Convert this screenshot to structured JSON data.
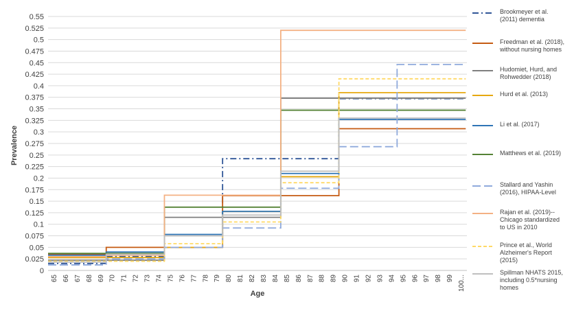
{
  "chart_data": {
    "type": "line",
    "xlabel": "Age",
    "ylabel": "Prevalence",
    "ylim": [
      0,
      0.55
    ],
    "y_tick_labels": [
      "0",
      "0.025",
      "0.05",
      "0.075",
      "0.1",
      "0.125",
      "0.15",
      "0.175",
      "0.2",
      "0.225",
      "0.25",
      "0.275",
      "0.3",
      "0.325",
      "0.35",
      "0.375",
      "0.4",
      "0.425",
      "0.45",
      "0.475",
      "0.5",
      "0.525",
      "0.55"
    ],
    "x_tick_labels": [
      "65",
      "66",
      "67",
      "68",
      "69",
      "70",
      "71",
      "72",
      "73",
      "74",
      "75",
      "76",
      "77",
      "78",
      "79",
      "80",
      "81",
      "82",
      "83",
      "84",
      "85",
      "86",
      "87",
      "88",
      "89",
      "90",
      "91",
      "92",
      "93",
      "94",
      "95",
      "96",
      "97",
      "98",
      "99",
      "100..."
    ],
    "grid": true,
    "legend_position": "right",
    "series": [
      {
        "name": "Brookmeyer et al. (2011) dementia",
        "color": "#2f5597",
        "dash": "dashdot",
        "breaks": [
          65,
          70,
          75,
          80,
          85,
          90
        ],
        "values": [
          0.015,
          0.03,
          0.05,
          0.242,
          0.242,
          0.372
        ]
      },
      {
        "name": "Freedman et al. (2018), without nursing homes",
        "color": "#c55a11",
        "dash": "solid",
        "breaks": [
          65,
          70,
          75,
          80,
          85,
          90
        ],
        "values": [
          0.035,
          0.05,
          0.05,
          0.162,
          0.162,
          0.307
        ]
      },
      {
        "name": "Hudomiet, Hurd, and Rohwedder (2018)",
        "color": "#7f7f7f",
        "dash": "solid",
        "breaks": [
          65,
          70,
          75,
          80,
          85,
          90
        ],
        "values": [
          0.022,
          0.022,
          0.115,
          0.115,
          0.373,
          0.373
        ]
      },
      {
        "name": "Hurd et al. (2013)",
        "color": "#e6a80f",
        "dash": "solid",
        "breaks": [
          65,
          70,
          75,
          80,
          85,
          90
        ],
        "values": [
          0.028,
          0.028,
          0.05,
          0.128,
          0.203,
          0.385
        ]
      },
      {
        "name": "Li et al. (2017)",
        "color": "#2e75b6",
        "dash": "solid",
        "breaks": [
          65,
          70,
          75,
          80,
          85,
          90
        ],
        "values": [
          0.033,
          0.04,
          0.078,
          0.128,
          0.21,
          0.327
        ]
      },
      {
        "name": "Matthews et al. (2019)",
        "color": "#548235",
        "dash": "solid",
        "breaks": [
          65,
          70,
          75,
          80,
          85,
          90
        ],
        "values": [
          0.037,
          0.037,
          0.137,
          0.137,
          0.347,
          0.347
        ]
      },
      {
        "name": "Stallard and Yashin (2016), HIPAA-Level",
        "color": "#8faadc",
        "dash": "longdash",
        "breaks": [
          65,
          70,
          75,
          80,
          85,
          90,
          95
        ],
        "values": [
          0.012,
          0.025,
          0.05,
          0.092,
          0.178,
          0.268,
          0.446
        ]
      },
      {
        "name": "Rajan et al. (2019)--Chicago standardized to US in 2010",
        "color": "#f4b183",
        "dash": "solid",
        "breaks": [
          65,
          70,
          75,
          80,
          85,
          90
        ],
        "values": [
          0.03,
          0.033,
          0.163,
          0.163,
          0.52,
          0.52
        ]
      },
      {
        "name": "Prince et al., World Alzheimer's Report (2015)",
        "color": "#ffd966",
        "dash": "shortdash",
        "breaks": [
          65,
          70,
          75,
          80,
          85,
          90
        ],
        "values": [
          0.02,
          0.02,
          0.058,
          0.105,
          0.19,
          0.415
        ]
      },
      {
        "name": "Spillman NHATS 2015, including 0.5*nursing homes",
        "color": "#bfbfbf",
        "dash": "solid",
        "breaks": [
          65,
          70,
          75,
          80,
          85,
          90
        ],
        "values": [
          0.018,
          0.035,
          0.075,
          0.12,
          0.215,
          0.33
        ]
      }
    ]
  },
  "legend": {
    "labels": [
      "Brookmeyer et al.\n(2011) dementia",
      "Freedman et al. (2018),\nwithout nursing homes",
      "Hudomiet, Hurd, and\nRohwedder (2018)",
      "Hurd et al. (2013)",
      "Li et al. (2017)",
      "Matthews et al. (2019)",
      "Stallard and Yashin\n(2016), HIPAA-Level",
      "Rajan et al. (2019)--\nChicago standardized\nto US in 2010",
      "Prince et al., World\nAlzheimer's Report\n(2015)",
      "Spillman NHATS 2015,\nincluding 0.5*nursing\nhomes"
    ]
  }
}
